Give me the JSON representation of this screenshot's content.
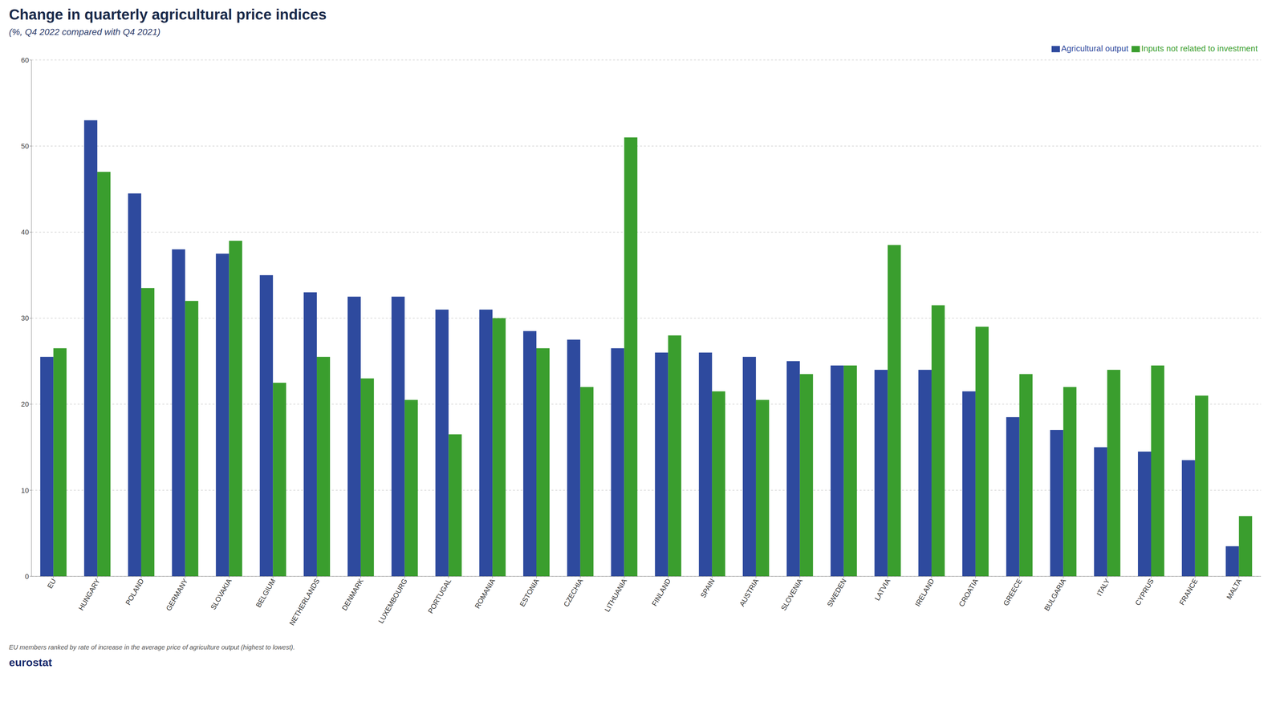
{
  "chart_data": {
    "type": "bar",
    "title": "Change in quarterly agricultural price indices",
    "subtitle": "(%, Q4 2022 compared with Q4 2021)",
    "categories": [
      "EU",
      "HUNGARY",
      "POLAND",
      "GERMANY",
      "SLOVAKIA",
      "BELGIUM",
      "NETHERLANDS",
      "DENMARK",
      "LUXEMBOURG",
      "PORTUGAL",
      "ROMANIA",
      "ESTONIA",
      "CZECHIA",
      "LITHUANIA",
      "FINLAND",
      "SPAIN",
      "AUSTRIA",
      "SLOVENIA",
      "SWEDEN",
      "LATVIA",
      "IRELAND",
      "CROATIA",
      "GREECE",
      "BULGARIA",
      "ITALY",
      "CYPRUS",
      "FRANCE",
      "MALTA"
    ],
    "series": [
      {
        "name": "Agricultural output",
        "color": "#2e4a9e",
        "values": [
          25.5,
          53.0,
          44.5,
          38.0,
          37.5,
          35.0,
          33.0,
          32.5,
          32.5,
          31.0,
          31.0,
          28.5,
          27.5,
          26.5,
          26.0,
          26.0,
          25.5,
          25.0,
          24.5,
          24.0,
          24.0,
          21.5,
          18.5,
          17.0,
          15.0,
          14.5,
          13.5,
          3.5
        ]
      },
      {
        "name": "Inputs not related to investment",
        "color": "#3a9e2e",
        "values": [
          26.5,
          47.0,
          33.5,
          32.0,
          39.0,
          22.5,
          25.5,
          23.0,
          20.5,
          16.5,
          30.0,
          26.5,
          22.0,
          51.0,
          28.0,
          21.5,
          20.5,
          23.5,
          24.5,
          38.5,
          31.5,
          29.0,
          23.5,
          22.0,
          24.0,
          24.5,
          21.0,
          7.0
        ]
      }
    ],
    "ylim": [
      0,
      60
    ],
    "yticks": [
      0,
      10,
      20,
      30,
      40,
      50,
      60
    ],
    "grid": true,
    "legend": "upper right",
    "annotations": [
      "EU members ranked by rate of increase in the average price of agriculture output (highest to lowest).",
      "eurostat"
    ]
  }
}
